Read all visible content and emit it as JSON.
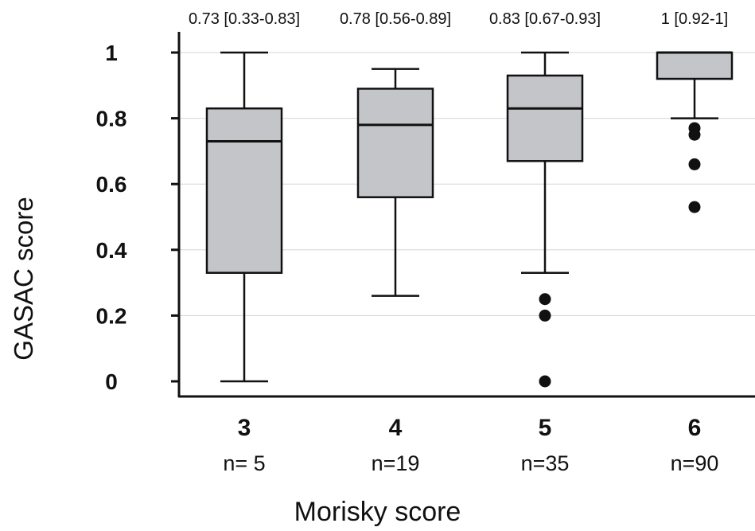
{
  "chart_data": {
    "type": "box",
    "title": "",
    "xlabel": "Morisky score",
    "ylabel": "GASAC score",
    "ylim": [
      0,
      1
    ],
    "yticks": [
      "0",
      "0.2",
      "0.4",
      "0.6",
      "0.8",
      "1"
    ],
    "grid": "horizontal",
    "categories": [
      "3",
      "4",
      "5",
      "6"
    ],
    "counts": [
      "n= 5",
      "n=19",
      "n=35",
      "n=90"
    ],
    "summaries": [
      "0.73 [0.33-0.83]",
      "0.78 [0.56-0.89]",
      "0.83 [0.67-0.93]",
      "1 [0.92-1]"
    ],
    "boxes": [
      {
        "category": "3",
        "min": 0.0,
        "q1": 0.33,
        "median": 0.73,
        "q3": 0.83,
        "max": 1.0,
        "outliers": []
      },
      {
        "category": "4",
        "min": 0.26,
        "q1": 0.56,
        "median": 0.78,
        "q3": 0.89,
        "max": 0.95,
        "outliers": []
      },
      {
        "category": "5",
        "min": 0.33,
        "q1": 0.67,
        "median": 0.83,
        "q3": 0.93,
        "max": 1.0,
        "outliers": [
          0.25,
          0.2,
          0.0
        ]
      },
      {
        "category": "6",
        "min": 0.8,
        "q1": 0.92,
        "median": 1.0,
        "q3": 1.0,
        "max": 1.0,
        "outliers": [
          0.77,
          0.75,
          0.66,
          0.53
        ]
      }
    ],
    "colors": {
      "box_fill": "#c4c5c8",
      "stroke": "#111111",
      "grid": "#d6d6d6"
    }
  }
}
